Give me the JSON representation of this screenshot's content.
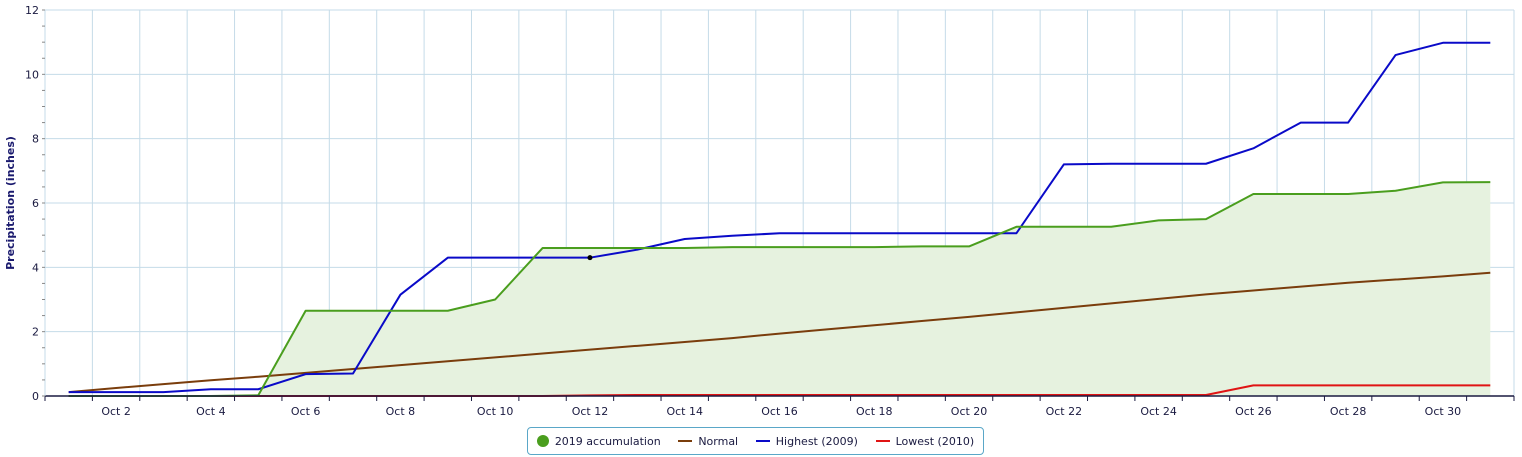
{
  "chart_data": {
    "type": "line",
    "title": "",
    "xlabel": "",
    "ylabel": "Precipitation (inches)",
    "ylim": [
      0,
      12
    ],
    "yticks": [
      "0",
      "2",
      "4",
      "6",
      "8",
      "10",
      "12"
    ],
    "x_days": [
      1,
      2,
      3,
      4,
      5,
      6,
      7,
      8,
      9,
      10,
      11,
      12,
      13,
      14,
      15,
      16,
      17,
      18,
      19,
      20,
      21,
      22,
      23,
      24,
      25,
      26,
      27,
      28,
      29,
      30,
      31
    ],
    "xlim": [
      0.5,
      31.5
    ],
    "xtick_labels": [
      "Oct 2",
      "Oct 4",
      "Oct 6",
      "Oct 8",
      "Oct 10",
      "Oct 12",
      "Oct 14",
      "Oct 16",
      "Oct 18",
      "Oct 20",
      "Oct 22",
      "Oct 24",
      "Oct 26",
      "Oct 28",
      "Oct 30"
    ],
    "xtick_days": [
      2,
      4,
      6,
      8,
      10,
      12,
      14,
      16,
      18,
      20,
      22,
      24,
      26,
      28,
      30
    ],
    "grid": true,
    "legend_position": "bottom-center",
    "highlight_point": {
      "series": "Highest (2009)",
      "day": 12,
      "value": 4.3
    },
    "series": [
      {
        "name": "2019 accumulation",
        "color": "#4a9e1e",
        "fill": "#e6f2df",
        "marker": "dot",
        "values": [
          0.0,
          0.0,
          0.0,
          0.0,
          0.02,
          2.65,
          2.65,
          2.65,
          2.65,
          3.0,
          4.6,
          4.6,
          4.6,
          4.6,
          4.63,
          4.63,
          4.63,
          4.63,
          4.65,
          4.65,
          5.26,
          5.26,
          5.26,
          5.46,
          5.5,
          6.28,
          6.28,
          6.28,
          6.38,
          6.64,
          6.65
        ]
      },
      {
        "name": "Normal",
        "color": "#7a3d0c",
        "marker": "line",
        "values": [
          0.12,
          0.25,
          0.37,
          0.49,
          0.6,
          0.72,
          0.84,
          0.96,
          1.08,
          1.2,
          1.32,
          1.44,
          1.56,
          1.68,
          1.8,
          1.94,
          2.07,
          2.2,
          2.33,
          2.46,
          2.6,
          2.74,
          2.88,
          3.02,
          3.16,
          3.28,
          3.4,
          3.52,
          3.62,
          3.72,
          3.83
        ]
      },
      {
        "name": "Highest (2009)",
        "color": "#0a0ac8",
        "marker": "line",
        "values": [
          0.12,
          0.12,
          0.12,
          0.21,
          0.21,
          0.68,
          0.7,
          3.15,
          4.3,
          4.3,
          4.3,
          4.3,
          4.55,
          4.88,
          4.98,
          5.06,
          5.06,
          5.06,
          5.06,
          5.06,
          5.06,
          7.2,
          7.22,
          7.22,
          7.22,
          7.7,
          8.5,
          8.5,
          10.6,
          10.98,
          10.98
        ]
      },
      {
        "name": "Lowest (2010)",
        "color": "#e01414",
        "marker": "line",
        "values": [
          0.0,
          0.0,
          0.0,
          0.0,
          0.0,
          0.0,
          0.0,
          0.0,
          0.0,
          0.0,
          0.0,
          0.02,
          0.03,
          0.03,
          0.03,
          0.03,
          0.03,
          0.03,
          0.03,
          0.03,
          0.03,
          0.03,
          0.03,
          0.03,
          0.03,
          0.33,
          0.33,
          0.33,
          0.33,
          0.33,
          0.33
        ]
      }
    ]
  }
}
